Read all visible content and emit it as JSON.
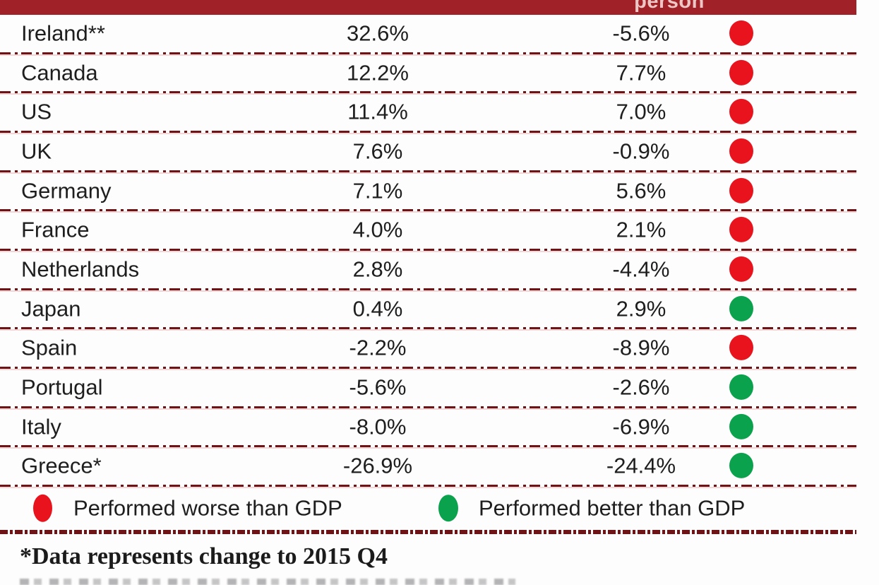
{
  "chart_data": {
    "type": "table",
    "visible_column_header": "person",
    "rows": [
      {
        "country": "Ireland**",
        "value1": "32.6%",
        "value2": "-5.6%",
        "indicator": "red"
      },
      {
        "country": "Canada",
        "value1": "12.2%",
        "value2": "7.7%",
        "indicator": "red"
      },
      {
        "country": "US",
        "value1": "11.4%",
        "value2": "7.0%",
        "indicator": "red"
      },
      {
        "country": "UK",
        "value1": "7.6%",
        "value2": "-0.9%",
        "indicator": "red"
      },
      {
        "country": "Germany",
        "value1": "7.1%",
        "value2": "5.6%",
        "indicator": "red"
      },
      {
        "country": "France",
        "value1": "4.0%",
        "value2": "2.1%",
        "indicator": "red"
      },
      {
        "country": "Netherlands",
        "value1": "2.8%",
        "value2": "-4.4%",
        "indicator": "red"
      },
      {
        "country": "Japan",
        "value1": "0.4%",
        "value2": "2.9%",
        "indicator": "green"
      },
      {
        "country": "Spain",
        "value1": "-2.2%",
        "value2": "-8.9%",
        "indicator": "red"
      },
      {
        "country": "Portugal",
        "value1": "-5.6%",
        "value2": "-2.6%",
        "indicator": "green"
      },
      {
        "country": "Italy",
        "value1": "-8.0%",
        "value2": "-6.9%",
        "indicator": "green"
      },
      {
        "country": "Greece*",
        "value1": "-26.9%",
        "value2": "-24.4%",
        "indicator": "green"
      }
    ],
    "legend": [
      {
        "color": "red",
        "label": "Performed worse than GDP"
      },
      {
        "color": "green",
        "label": "Performed better than GDP"
      }
    ],
    "footnote": "*Data represents change to 2015 Q4"
  },
  "colors": {
    "header_bar": "#a02127",
    "header_text": "#edc7c5",
    "red_dot": "#e8131d",
    "green_dot": "#0aa24c",
    "dash": "#6e1316"
  }
}
